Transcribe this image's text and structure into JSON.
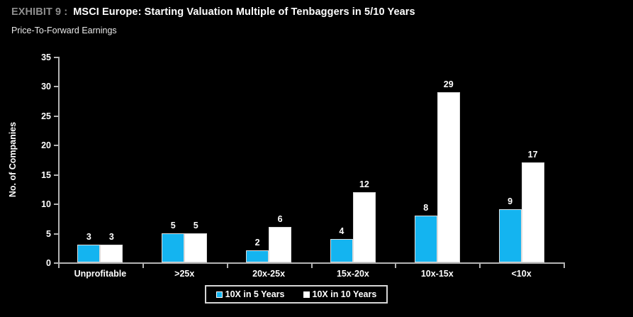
{
  "header": {
    "exhibit_label": "EXHIBIT 9 :",
    "title": "MSCI Europe: Starting Valuation Multiple of Tenbaggers in 5/10 Years",
    "subtitle": "Price-To-Forward Earnings"
  },
  "chart_data": {
    "type": "bar",
    "title": "MSCI Europe: Starting Valuation Multiple of Tenbaggers in 5/10 Years",
    "subtitle": "Price-To-Forward Earnings",
    "categories": [
      "Unprofitable",
      ">25x",
      "20x-25x",
      "15x-20x",
      "10x-15x",
      "<10x"
    ],
    "series": [
      {
        "name": "10X in 5 Years",
        "color": "#14b4f0",
        "values": [
          3,
          5,
          2,
          4,
          8,
          9
        ]
      },
      {
        "name": "10X in 10 Years",
        "color": "#ffffff",
        "values": [
          3,
          5,
          6,
          12,
          29,
          17
        ]
      }
    ],
    "xlabel": "",
    "ylabel": "No. of Companies",
    "ylim": [
      0,
      35
    ],
    "ytick_step": 5,
    "grid": false,
    "legend_position": "bottom",
    "colors": {
      "background": "#000000",
      "axis": "#b3b3b3",
      "text": "#ffffff",
      "exhibit_label": "#8e8e8e"
    }
  }
}
